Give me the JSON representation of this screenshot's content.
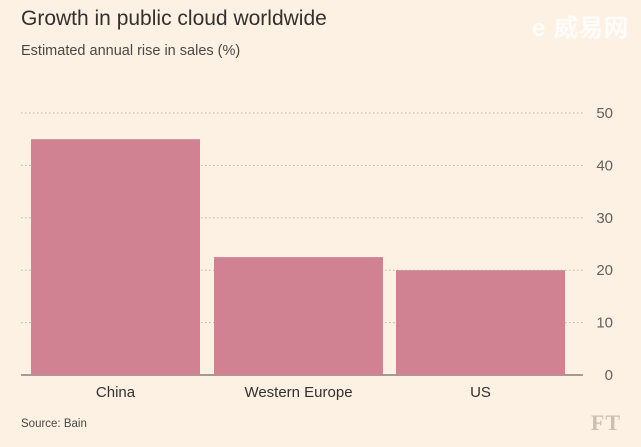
{
  "header": {
    "title": "Growth in public cloud worldwide",
    "subtitle": "Estimated annual rise in sales (%)"
  },
  "footer": {
    "source": "Source: Bain",
    "logo": "FT"
  },
  "watermark": {
    "text": "e 威易网"
  },
  "colors": {
    "bar": "#d08293",
    "background": "#fdf1e4",
    "gridline": "#b9b2aa",
    "text": "#33302e",
    "axis_text": "#66605c"
  },
  "chart_data": {
    "type": "bar",
    "title": "Growth in public cloud worldwide",
    "subtitle": "Estimated annual rise in sales (%)",
    "categories": [
      "China",
      "Western Europe",
      "US"
    ],
    "values": [
      45,
      22.5,
      20
    ],
    "xlabel": "",
    "ylabel": "Estimated annual rise in sales (%)",
    "ylim": [
      0,
      50
    ],
    "yticks": [
      0,
      10,
      20,
      30,
      40,
      50
    ],
    "y_axis_side": "right",
    "grid": true
  }
}
